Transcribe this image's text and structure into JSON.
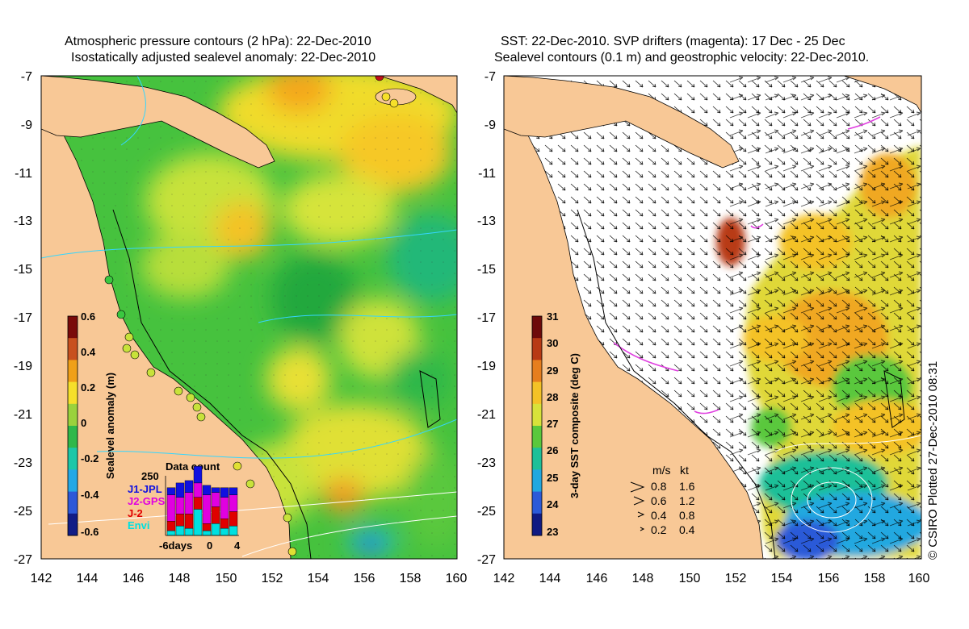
{
  "left_panel": {
    "title_line1": "Atmospheric pressure contours (2 hPa): 22-Dec-2010",
    "title_line2": "Isostatically adjusted sealevel anomaly: 22-Dec-2010",
    "y_ticks": [
      "-7",
      "-9",
      "-11",
      "-13",
      "-15",
      "-17",
      "-19",
      "-21",
      "-23",
      "-25",
      "-27"
    ],
    "x_ticks": [
      "142",
      "144",
      "146",
      "148",
      "150",
      "152",
      "154",
      "156",
      "158",
      "160"
    ],
    "colorbar": {
      "label": "Sealevel anomaly (m)",
      "ticks": [
        "0.6",
        "0.4",
        "0.2",
        "0",
        "-0.2",
        "-0.4",
        "-0.6"
      ],
      "colors": [
        "#7a0a0a",
        "#c8501e",
        "#f0a018",
        "#f6e02a",
        "#9ad23c",
        "#2fb84a",
        "#1cc7a8",
        "#24a8e6",
        "#2d58d8",
        "#121c86"
      ]
    },
    "inset": {
      "title": "Data count",
      "ymax": "250",
      "legend": [
        {
          "name": "J1-JPL",
          "color": "#1010e0"
        },
        {
          "name": "J2-GPS",
          "color": "#e000e0"
        },
        {
          "name": "J-2",
          "color": "#e00000"
        },
        {
          "name": "Envi",
          "color": "#00e0e0"
        }
      ],
      "x_labels": [
        "-6days",
        "0",
        "4"
      ],
      "bars": [
        [
          0.15,
          0.55,
          0.2,
          0.1
        ],
        [
          0.3,
          0.35,
          0.25,
          0.2
        ],
        [
          0.25,
          0.45,
          0.3,
          0.15
        ],
        [
          0.35,
          0.3,
          0.25,
          0.55
        ],
        [
          0.2,
          0.6,
          0.15,
          0.1
        ],
        [
          0.1,
          0.3,
          0.35,
          0.25
        ],
        [
          0.2,
          0.45,
          0.2,
          0.15
        ],
        [
          0.15,
          0.35,
          0.3,
          0.2
        ]
      ]
    }
  },
  "right_panel": {
    "title_line1": "SST: 22-Dec-2010. SVP drifters (magenta): 17 Dec - 25 Dec",
    "title_line2": "Sealevel contours (0.1 m) and geostrophic velocity: 22-Dec-2010.",
    "y_ticks": [
      "-7",
      "-9",
      "-11",
      "-13",
      "-15",
      "-17",
      "-19",
      "-21",
      "-23",
      "-25",
      "-27"
    ],
    "x_ticks": [
      "142",
      "144",
      "146",
      "148",
      "150",
      "152",
      "154",
      "156",
      "158",
      "160"
    ],
    "colorbar": {
      "label": "3-day SST composite (deg C)",
      "ticks": [
        "31",
        "30",
        "29",
        "28",
        "27",
        "26",
        "25",
        "24",
        "23"
      ],
      "colors": [
        "#6e0a0a",
        "#b83a14",
        "#e67e1e",
        "#f4c226",
        "#d8e23a",
        "#5ac83c",
        "#1ec098",
        "#22a8e0",
        "#2c5ad8",
        "#101a82"
      ]
    },
    "velocity_legend": {
      "header_ms": "m/s",
      "header_kt": "kt",
      "rows": [
        {
          "ms": "0.8",
          "kt": "1.6"
        },
        {
          "ms": "0.6",
          "kt": "1.2"
        },
        {
          "ms": "0.4",
          "kt": "0.8"
        },
        {
          "ms": "0.2",
          "kt": "0.4"
        }
      ]
    }
  },
  "copyright": "© CSIRO Plotted 27-Dec-2010 08:31",
  "colors": {
    "land": "#f8c896",
    "white_ocean": "#ffffff"
  }
}
